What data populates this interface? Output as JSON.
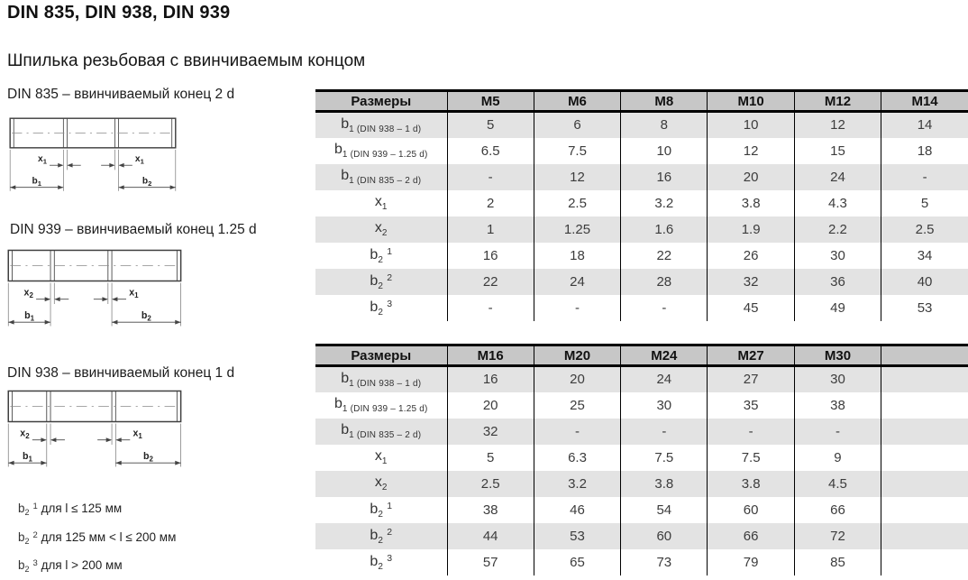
{
  "page": {
    "title": "DIN 835, DIN 938, DIN 939",
    "subtitle": "Шпилька резьбовая с ввинчиваемым концом"
  },
  "colors": {
    "table_header_bg": "#c7c7c7",
    "table_stripe_bg": "#e3e3e3",
    "table_border": "#000000"
  },
  "diagrams": [
    {
      "caption": "DIN 835 – ввинчиваемый конец 2 d",
      "left_dim": {
        "base": "x",
        "sub": "1"
      },
      "right_dim": {
        "base": "x",
        "sub": "1"
      },
      "left_length": {
        "base": "b",
        "sub": "1"
      },
      "right_length": {
        "base": "b",
        "sub": "2"
      }
    },
    {
      "caption": "DIN 939 – ввинчиваемый конец 1.25 d",
      "left_dim": {
        "base": "x",
        "sub": "2"
      },
      "right_dim": {
        "base": "x",
        "sub": "1"
      },
      "left_length": {
        "base": "b",
        "sub": "1"
      },
      "right_length": {
        "base": "b",
        "sub": "2"
      }
    },
    {
      "caption": "DIN 938 – ввинчиваемый конец 1 d",
      "left_dim": {
        "base": "x",
        "sub": "2"
      },
      "right_dim": {
        "base": "x",
        "sub": "1"
      },
      "left_length": {
        "base": "b",
        "sub": "1"
      },
      "right_length": {
        "base": "b",
        "sub": "2"
      }
    }
  ],
  "tables": [
    {
      "header": [
        "Размеры",
        "M5",
        "M6",
        "M8",
        "M10",
        "M12",
        "M14"
      ],
      "rows": [
        {
          "label": {
            "base": "b",
            "sub": "1 (DIN 938 – 1 d)"
          },
          "values": [
            "5",
            "6",
            "8",
            "10",
            "12",
            "14"
          ]
        },
        {
          "label": {
            "base": "b",
            "sub": "1 (DIN 939 – 1.25 d)"
          },
          "values": [
            "6.5",
            "7.5",
            "10",
            "12",
            "15",
            "18"
          ]
        },
        {
          "label": {
            "base": "b",
            "sub": "1 (DIN 835 – 2 d)"
          },
          "values": [
            "-",
            "12",
            "16",
            "20",
            "24",
            "-"
          ]
        },
        {
          "label": {
            "base": "x",
            "sub": "1"
          },
          "values": [
            "2",
            "2.5",
            "3.2",
            "3.8",
            "4.3",
            "5"
          ]
        },
        {
          "label": {
            "base": "x",
            "sub": "2"
          },
          "values": [
            "1",
            "1.25",
            "1.6",
            "1.9",
            "2.2",
            "2.5"
          ]
        },
        {
          "label": {
            "base": "b",
            "sub": "2",
            "sup": "1"
          },
          "values": [
            "16",
            "18",
            "22",
            "26",
            "30",
            "34"
          ]
        },
        {
          "label": {
            "base": "b",
            "sub": "2",
            "sup": "2"
          },
          "values": [
            "22",
            "24",
            "28",
            "32",
            "36",
            "40"
          ]
        },
        {
          "label": {
            "base": "b",
            "sub": "2",
            "sup": "3"
          },
          "values": [
            "-",
            "-",
            "-",
            "45",
            "49",
            "53"
          ]
        }
      ]
    },
    {
      "header": [
        "Размеры",
        "M16",
        "M20",
        "M24",
        "M27",
        "M30",
        ""
      ],
      "rows": [
        {
          "label": {
            "base": "b",
            "sub": "1 (DIN 938 – 1 d)"
          },
          "values": [
            "16",
            "20",
            "24",
            "27",
            "30",
            ""
          ]
        },
        {
          "label": {
            "base": "b",
            "sub": "1 (DIN 939 – 1.25 d)"
          },
          "values": [
            "20",
            "25",
            "30",
            "35",
            "38",
            ""
          ]
        },
        {
          "label": {
            "base": "b",
            "sub": "1 (DIN 835 – 2 d)"
          },
          "values": [
            "32",
            "-",
            "-",
            "-",
            "-",
            ""
          ]
        },
        {
          "label": {
            "base": "x",
            "sub": "1"
          },
          "values": [
            "5",
            "6.3",
            "7.5",
            "7.5",
            "9",
            ""
          ]
        },
        {
          "label": {
            "base": "x",
            "sub": "2"
          },
          "values": [
            "2.5",
            "3.2",
            "3.8",
            "3.8",
            "4.5",
            ""
          ]
        },
        {
          "label": {
            "base": "b",
            "sub": "2",
            "sup": "1"
          },
          "values": [
            "38",
            "46",
            "54",
            "60",
            "66",
            ""
          ]
        },
        {
          "label": {
            "base": "b",
            "sub": "2",
            "sup": "2"
          },
          "values": [
            "44",
            "53",
            "60",
            "66",
            "72",
            ""
          ]
        },
        {
          "label": {
            "base": "b",
            "sub": "2",
            "sup": "3"
          },
          "values": [
            "57",
            "65",
            "73",
            "79",
            "85",
            ""
          ]
        }
      ]
    }
  ],
  "footnotes": [
    {
      "label": {
        "base": "b",
        "sub": "2",
        "sup": "1"
      },
      "text": "для l ≤ 125 мм"
    },
    {
      "label": {
        "base": "b",
        "sub": "2",
        "sup": "2"
      },
      "text": "для 125 мм < l ≤ 200 мм"
    },
    {
      "label": {
        "base": "b",
        "sub": "2",
        "sup": "3"
      },
      "text": "для l > 200 мм"
    }
  ]
}
